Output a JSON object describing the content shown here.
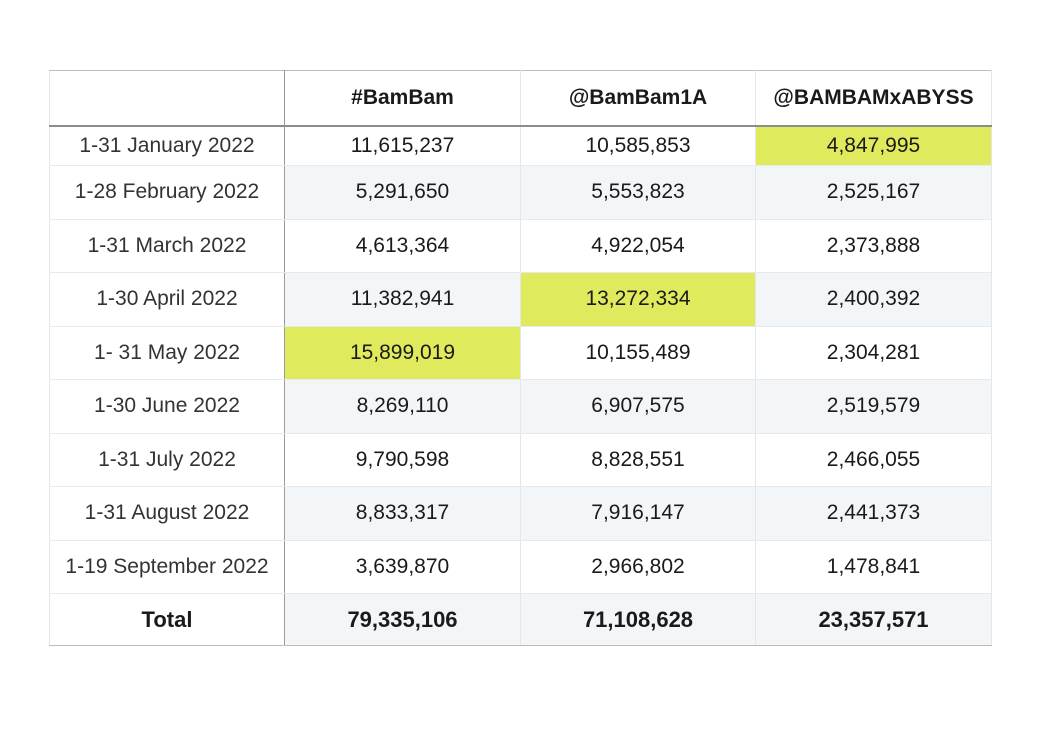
{
  "table": {
    "headers": [
      "",
      "#BamBam",
      "@BamBam1A",
      "@BAMBAMxABYSS"
    ],
    "rows": [
      {
        "label": "1-31 January  2022",
        "values": [
          "11,615,237",
          "10,585,853",
          "4,847,995"
        ],
        "highlight": 2
      },
      {
        "label": "1-28 February 2022",
        "values": [
          "5,291,650",
          "5,553,823",
          "2,525,167"
        ],
        "highlight": -1
      },
      {
        "label": "1-31 March 2022",
        "values": [
          "4,613,364",
          "4,922,054",
          "2,373,888"
        ],
        "highlight": -1
      },
      {
        "label": "1-30 April 2022",
        "values": [
          "11,382,941",
          "13,272,334",
          "2,400,392"
        ],
        "highlight": 1
      },
      {
        "label": "1- 31 May 2022",
        "values": [
          "15,899,019",
          "10,155,489",
          "2,304,281"
        ],
        "highlight": 0
      },
      {
        "label": "1-30 June 2022",
        "values": [
          "8,269,110",
          "6,907,575",
          "2,519,579"
        ],
        "highlight": -1
      },
      {
        "label": "1-31 July 2022",
        "values": [
          "9,790,598",
          "8,828,551",
          "2,466,055"
        ],
        "highlight": -1
      },
      {
        "label": "1-31 August 2022",
        "values": [
          "8,833,317",
          "7,916,147",
          "2,441,373"
        ],
        "highlight": -1
      },
      {
        "label": "1-19 September 2022",
        "values": [
          "3,639,870",
          "2,966,802",
          "1,478,841"
        ],
        "highlight": -1
      }
    ],
    "total": {
      "label": "Total",
      "values": [
        "79,335,106",
        "71,108,628",
        "23,357,571"
      ]
    },
    "highlight_color": "#dfea5c"
  }
}
